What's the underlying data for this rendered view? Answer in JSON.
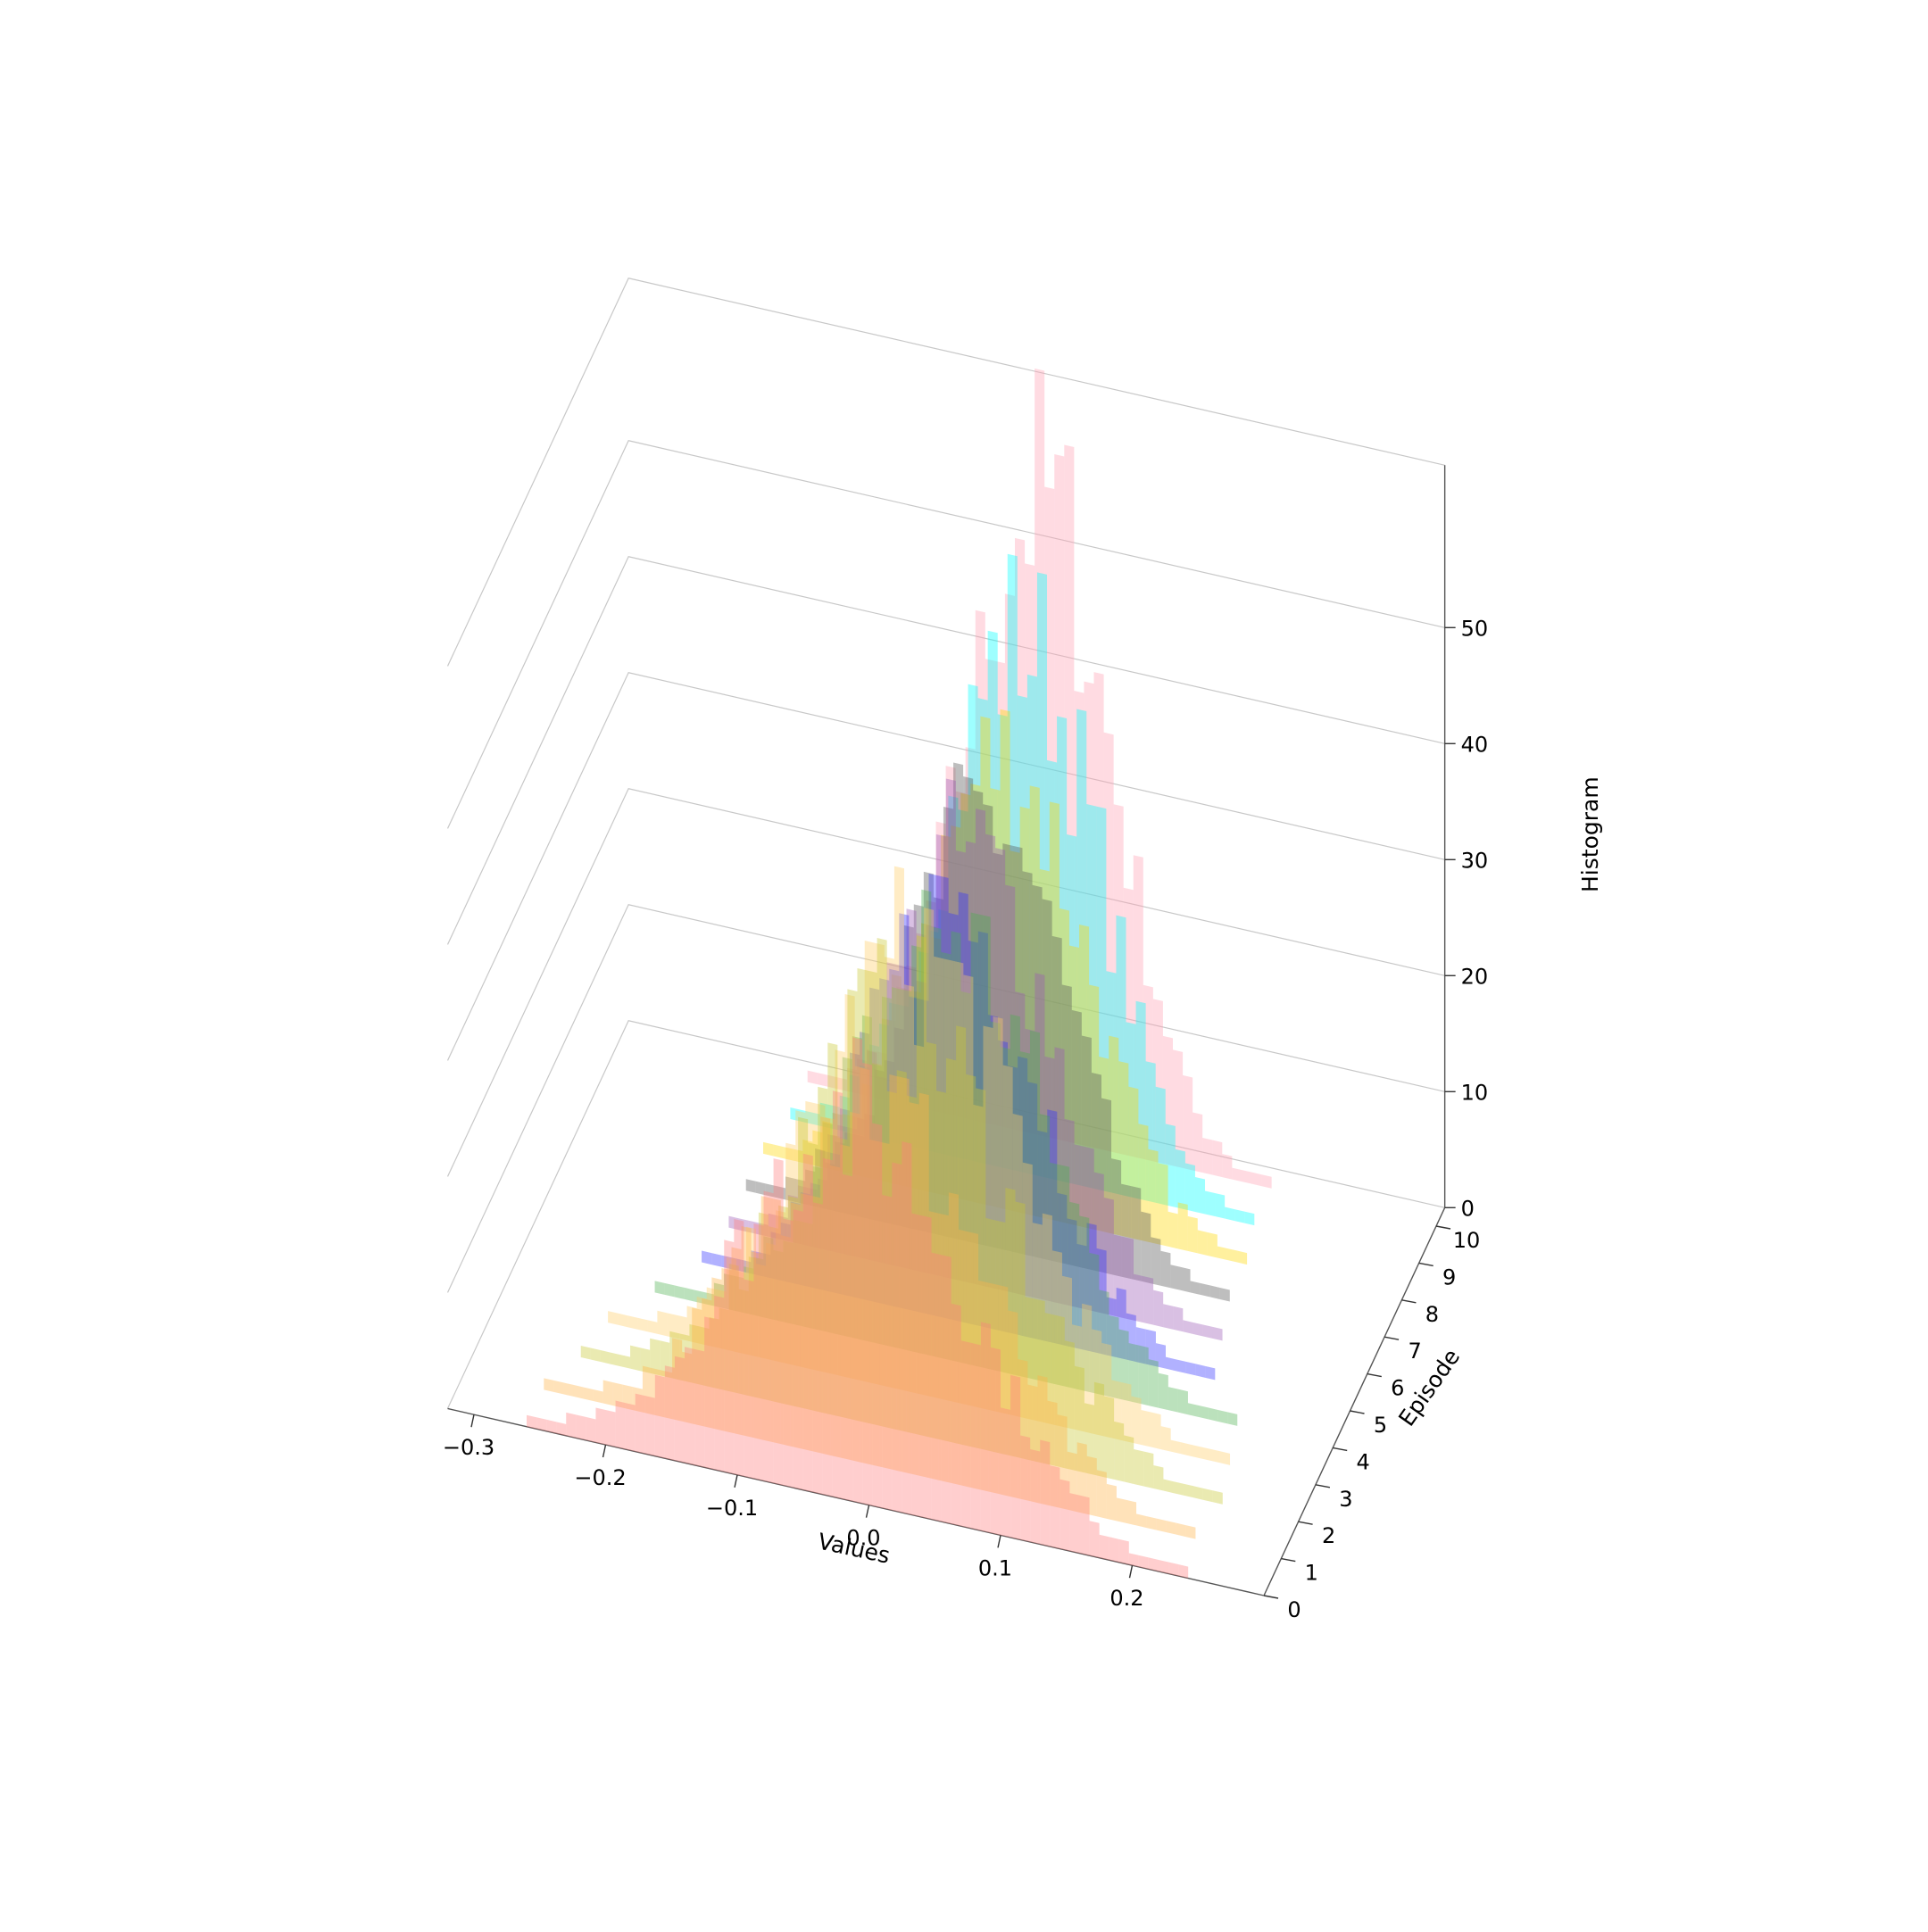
{
  "chart_data": {
    "type": "bar3d",
    "title": "",
    "xlabel": "Values",
    "ylabel": "Episode",
    "zlabel": "Histogram",
    "x_ticks": [
      "−0.3",
      "−0.2",
      "−0.1",
      "0.0",
      "0.1",
      "0.2"
    ],
    "y_ticks": [
      "0",
      "1",
      "2",
      "3",
      "4",
      "5",
      "6",
      "7",
      "8",
      "9",
      "10"
    ],
    "z_ticks": [
      "0",
      "10",
      "20",
      "30",
      "40",
      "50"
    ],
    "xlim": [
      -0.32,
      0.3
    ],
    "ylim": [
      0,
      10.5
    ],
    "zlim": [
      0,
      58
    ],
    "bin_width": 0.0075,
    "grid": true,
    "series": [
      {
        "episode": 0,
        "color": "#ff7f7f",
        "mean": -0.01,
        "std": 0.085,
        "peak": 33
      },
      {
        "episode": 1,
        "color": "#ffb347",
        "mean": -0.01,
        "std": 0.082,
        "peak": 32
      },
      {
        "episode": 2,
        "color": "#c8c832",
        "mean": 0.0,
        "std": 0.08,
        "peak": 36
      },
      {
        "episode": 3,
        "color": "#ffcc66",
        "mean": 0.0,
        "std": 0.076,
        "peak": 38
      },
      {
        "episode": 4,
        "color": "#4caf50",
        "mean": 0.01,
        "std": 0.072,
        "peak": 37
      },
      {
        "episode": 5,
        "color": "#3333ff",
        "mean": 0.0,
        "std": 0.064,
        "peak": 36
      },
      {
        "episode": 6,
        "color": "#9b59b6",
        "mean": 0.0,
        "std": 0.062,
        "peak": 37
      },
      {
        "episode": 7,
        "color": "#555555",
        "mean": 0.0,
        "std": 0.06,
        "peak": 37
      },
      {
        "episode": 8,
        "color": "#ffd700",
        "mean": 0.0,
        "std": 0.06,
        "peak": 39
      },
      {
        "episode": 9,
        "color": "#00ffff",
        "mean": 0.0,
        "std": 0.058,
        "peak": 46
      },
      {
        "episode": 10,
        "color": "#ffa0b4",
        "mean": 0.0,
        "std": 0.055,
        "peak": 55
      }
    ]
  }
}
